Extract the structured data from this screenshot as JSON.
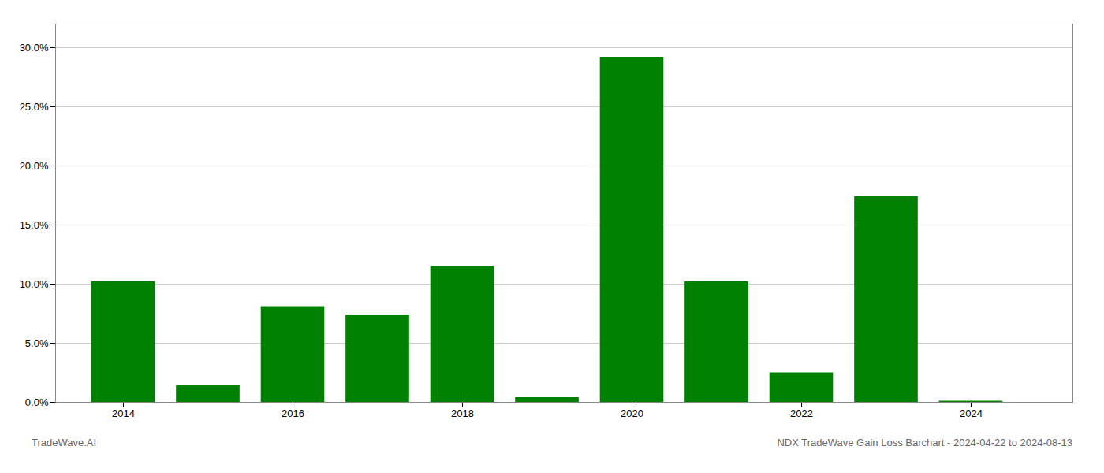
{
  "chart_data": {
    "type": "bar",
    "x": [
      2014,
      2015,
      2016,
      2017,
      2018,
      2019,
      2020,
      2021,
      2022,
      2023,
      2024
    ],
    "values": [
      0.102,
      0.014,
      0.081,
      0.074,
      0.115,
      0.004,
      0.292,
      0.102,
      0.025,
      0.174,
      0.001
    ],
    "color": "#008000",
    "xlim": [
      2013.2,
      2025.2
    ],
    "xticks": [
      2014,
      2016,
      2018,
      2020,
      2022,
      2024
    ],
    "ylim": [
      0,
      0.32
    ],
    "yticks": [
      {
        "value": 0.0,
        "label": "0.0%"
      },
      {
        "value": 0.05,
        "label": "5.0%"
      },
      {
        "value": 0.1,
        "label": "10.0%"
      },
      {
        "value": 0.15,
        "label": "15.0%"
      },
      {
        "value": 0.2,
        "label": "20.0%"
      },
      {
        "value": 0.25,
        "label": "25.0%"
      },
      {
        "value": 0.3,
        "label": "30.0%"
      }
    ],
    "grid": true,
    "annotations": [
      "TradeWave.AI",
      "NDX TradeWave Gain Loss Barchart - 2024-04-22 to 2024-08-13"
    ]
  }
}
